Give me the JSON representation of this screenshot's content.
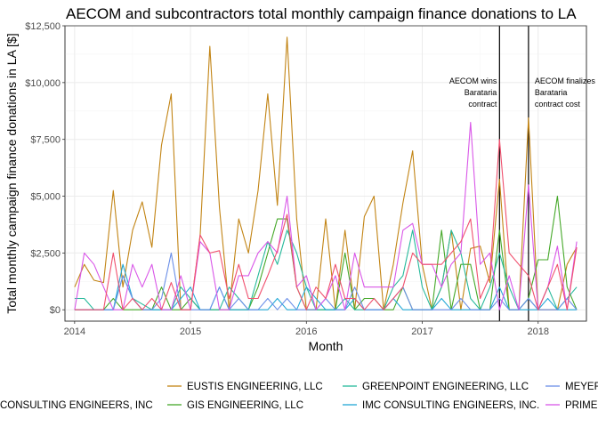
{
  "chart_data": {
    "type": "line",
    "title": "AECOM and subcontractors total monthly campaign finance donations to LA",
    "xlabel": "Month",
    "ylabel": "Total monthly campaign finance donations in LA [$]",
    "x_start": "2013-12",
    "x_end": "2018-06",
    "ylim": [
      -500,
      12500
    ],
    "x_ticks": [
      {
        "date": "2014-01",
        "label": "2014"
      },
      {
        "date": "2015-01",
        "label": "2015"
      },
      {
        "date": "2016-01",
        "label": "2016"
      },
      {
        "date": "2017-01",
        "label": "2017"
      },
      {
        "date": "2018-01",
        "label": "2018"
      }
    ],
    "y_ticks": [
      {
        "value": 0,
        "label": "$0"
      },
      {
        "value": 2500,
        "label": "$2,500"
      },
      {
        "value": 5000,
        "label": "$5,000"
      },
      {
        "value": 7500,
        "label": "$7,500"
      },
      {
        "value": 10000,
        "label": "$10,000"
      },
      {
        "value": 12500,
        "label": "$12,500"
      }
    ],
    "grid": true,
    "legend_position": "bottom",
    "annotations": [
      {
        "date": "2017-09",
        "lines": [
          "AECOM wins",
          "Barataria",
          "contract"
        ],
        "align": "left-of-line"
      },
      {
        "date": "2017-12",
        "lines": [
          "AECOM finalizes",
          "Barataria",
          "contract cost"
        ],
        "align": "right-of-line"
      }
    ],
    "series": [
      {
        "name": "EUSTIS ENGINEERING, LLC",
        "color": "#c28414",
        "x": [
          "2014-01",
          "2014-02",
          "2014-03",
          "2014-04",
          "2014-05",
          "2014-06",
          "2014-07",
          "2014-08",
          "2014-09",
          "2014-10",
          "2014-11",
          "2014-12",
          "2015-01",
          "2015-02",
          "2015-03",
          "2015-04",
          "2015-05",
          "2015-06",
          "2015-07",
          "2015-08",
          "2015-09",
          "2015-10",
          "2015-11",
          "2015-12",
          "2016-01",
          "2016-02",
          "2016-03",
          "2016-04",
          "2016-05",
          "2016-06",
          "2016-07",
          "2016-08",
          "2016-09",
          "2016-10",
          "2016-11",
          "2016-12",
          "2017-01",
          "2017-02",
          "2017-03",
          "2017-04",
          "2017-05",
          "2017-06",
          "2017-07",
          "2017-08",
          "2017-09",
          "2017-10",
          "2017-11",
          "2017-12",
          "2018-01",
          "2018-02",
          "2018-03",
          "2018-04",
          "2018-05"
        ],
        "y": [
          1000,
          2000,
          1300,
          1200,
          5250,
          1000,
          3500,
          4750,
          2750,
          7250,
          9500,
          0,
          0,
          3250,
          11600,
          4500,
          0,
          4000,
          2500,
          5250,
          9500,
          4600,
          12000,
          4000,
          0,
          0,
          4000,
          0,
          3500,
          0,
          4100,
          5000,
          0,
          2000,
          4700,
          7000,
          2000,
          0,
          1000,
          3500,
          0,
          2700,
          2800,
          1200,
          5750,
          0,
          0,
          8450,
          0,
          0,
          0,
          2000,
          2750
        ]
      },
      {
        "name": "GIS ENGINEERING, LLC",
        "color": "#45a829",
        "x": [
          "2014-01",
          "2014-02",
          "2014-03",
          "2014-04",
          "2014-05",
          "2014-06",
          "2014-07",
          "2014-08",
          "2014-09",
          "2014-10",
          "2014-11",
          "2014-12",
          "2015-01",
          "2015-02",
          "2015-03",
          "2015-04",
          "2015-05",
          "2015-06",
          "2015-07",
          "2015-08",
          "2015-09",
          "2015-10",
          "2015-11",
          "2015-12",
          "2016-01",
          "2016-02",
          "2016-03",
          "2016-04",
          "2016-05",
          "2016-06",
          "2016-07",
          "2016-08",
          "2016-09",
          "2016-10",
          "2016-11",
          "2016-12",
          "2017-01",
          "2017-02",
          "2017-03",
          "2017-04",
          "2017-05",
          "2017-06",
          "2017-07",
          "2017-08",
          "2017-09",
          "2017-10",
          "2017-11",
          "2017-12",
          "2018-01",
          "2018-02",
          "2018-03",
          "2018-04",
          "2018-05"
        ],
        "y": [
          0,
          0,
          0,
          0,
          500,
          0,
          0,
          0,
          0,
          1000,
          0,
          0,
          500,
          0,
          0,
          0,
          0,
          0,
          0,
          1000,
          2500,
          4000,
          4000,
          1000,
          0,
          0,
          0,
          0,
          2500,
          0,
          500,
          500,
          0,
          0,
          1000,
          0,
          0,
          0,
          3500,
          0,
          2000,
          2000,
          0,
          0,
          3500,
          0,
          0,
          500,
          2200,
          2200,
          5000,
          1000,
          0
        ]
      },
      {
        "name": "GREENPOINT ENGINEERING, LLC",
        "color": "#26b99b",
        "x": [
          "2014-01",
          "2014-02",
          "2014-03",
          "2014-04",
          "2014-05",
          "2014-06",
          "2014-07",
          "2014-08",
          "2014-09",
          "2014-10",
          "2014-11",
          "2014-12",
          "2015-01",
          "2015-02",
          "2015-03",
          "2015-04",
          "2015-05",
          "2015-06",
          "2015-07",
          "2015-08",
          "2015-09",
          "2015-10",
          "2015-11",
          "2015-12",
          "2016-01",
          "2016-02",
          "2016-03",
          "2016-04",
          "2016-05",
          "2016-06",
          "2016-07",
          "2016-08",
          "2016-09",
          "2016-10",
          "2016-11",
          "2016-12",
          "2017-01",
          "2017-02",
          "2017-03",
          "2017-04",
          "2017-05",
          "2017-06",
          "2017-07",
          "2017-08",
          "2017-09",
          "2017-10",
          "2017-11",
          "2017-12",
          "2018-01",
          "2018-02",
          "2018-03",
          "2018-04",
          "2018-05"
        ],
        "y": [
          500,
          500,
          0,
          0,
          0,
          1500,
          500,
          250,
          0,
          0,
          0,
          1000,
          500,
          0,
          0,
          0,
          1000,
          500,
          0,
          1500,
          3000,
          2000,
          3500,
          2500,
          1000,
          0,
          0,
          0,
          500,
          0,
          0,
          0,
          0,
          1000,
          1500,
          3500,
          1000,
          0,
          1000,
          3500,
          2500,
          500,
          0,
          1000,
          2500,
          1000,
          0,
          500,
          0,
          1000,
          0,
          500,
          1000
        ]
      },
      {
        "name": "IMC CONSULTING ENGINEERS, INC.",
        "color": "#23a8d6",
        "x": [
          "2014-01",
          "2014-02",
          "2014-03",
          "2014-04",
          "2014-05",
          "2014-06",
          "2014-07",
          "2014-08",
          "2014-09",
          "2014-10",
          "2014-11",
          "2014-12",
          "2015-01",
          "2015-02",
          "2015-03",
          "2015-04",
          "2015-05",
          "2015-06",
          "2015-07",
          "2015-08",
          "2015-09",
          "2015-10",
          "2015-11",
          "2015-12",
          "2016-01",
          "2016-02",
          "2016-03",
          "2016-04",
          "2016-05",
          "2016-06",
          "2016-07",
          "2016-08",
          "2016-09",
          "2016-10",
          "2016-11",
          "2016-12",
          "2017-01",
          "2017-02",
          "2017-03",
          "2017-04",
          "2017-05",
          "2017-06",
          "2017-07",
          "2017-08",
          "2017-09",
          "2017-10",
          "2017-11",
          "2017-12",
          "2018-01",
          "2018-02",
          "2018-03",
          "2018-04",
          "2018-05"
        ],
        "y": [
          0,
          0,
          0,
          0,
          0,
          2000,
          500,
          0,
          0,
          0,
          0,
          500,
          1000,
          0,
          0,
          1000,
          0,
          0,
          0,
          0,
          0,
          500,
          0,
          0,
          1000,
          500,
          0,
          0,
          0,
          500,
          0,
          0,
          0,
          500,
          0,
          0,
          0,
          0,
          500,
          0,
          0,
          0,
          0,
          0,
          1000,
          0,
          0,
          0,
          0,
          500,
          0,
          0,
          0
        ]
      },
      {
        "name": "MEYER ENGINEERS, LTD.",
        "color": "#6b8fe8",
        "x": [
          "2014-01",
          "2014-02",
          "2014-03",
          "2014-04",
          "2014-05",
          "2014-06",
          "2014-07",
          "2014-08",
          "2014-09",
          "2014-10",
          "2014-11",
          "2014-12",
          "2015-01",
          "2015-02",
          "2015-03",
          "2015-04",
          "2015-05",
          "2015-06",
          "2015-07",
          "2015-08",
          "2015-09",
          "2015-10",
          "2015-11",
          "2015-12",
          "2016-01",
          "2016-02",
          "2016-03",
          "2016-04",
          "2016-05",
          "2016-06",
          "2016-07",
          "2016-08",
          "2016-09",
          "2016-10",
          "2016-11",
          "2016-12",
          "2017-01",
          "2017-02",
          "2017-03",
          "2017-04",
          "2017-05",
          "2017-06",
          "2017-07",
          "2017-08",
          "2017-09",
          "2017-10",
          "2017-11",
          "2017-12",
          "2018-01",
          "2018-02",
          "2018-03",
          "2018-04",
          "2018-05"
        ],
        "y": [
          0,
          0,
          0,
          0,
          0,
          1500,
          500,
          0,
          0,
          500,
          2500,
          0,
          0,
          0,
          0,
          1000,
          0,
          500,
          0,
          0,
          500,
          0,
          500,
          0,
          0,
          0,
          500,
          0,
          0,
          1000,
          0,
          0,
          0,
          500,
          1000,
          0,
          0,
          0,
          0,
          0,
          500,
          0,
          0,
          0,
          500,
          0,
          0,
          500,
          0,
          0,
          0,
          500,
          0
        ]
      },
      {
        "name": "PRIME ENGINEERING, INC.",
        "color": "#d957e8",
        "x": [
          "2014-01",
          "2014-02",
          "2014-03",
          "2014-04",
          "2014-05",
          "2014-06",
          "2014-07",
          "2014-08",
          "2014-09",
          "2014-10",
          "2014-11",
          "2014-12",
          "2015-01",
          "2015-02",
          "2015-03",
          "2015-04",
          "2015-05",
          "2015-06",
          "2015-07",
          "2015-08",
          "2015-09",
          "2015-10",
          "2015-11",
          "2015-12",
          "2016-01",
          "2016-02",
          "2016-03",
          "2016-04",
          "2016-05",
          "2016-06",
          "2016-07",
          "2016-08",
          "2016-09",
          "2016-10",
          "2016-11",
          "2016-12",
          "2017-01",
          "2017-02",
          "2017-03",
          "2017-04",
          "2017-05",
          "2017-06",
          "2017-07",
          "2017-08",
          "2017-09",
          "2017-10",
          "2017-11",
          "2017-12",
          "2018-01",
          "2018-02",
          "2018-03",
          "2018-04",
          "2018-05"
        ],
        "y": [
          0,
          2500,
          2000,
          1000,
          0,
          0,
          2000,
          1000,
          2000,
          0,
          0,
          1500,
          0,
          3000,
          2500,
          0,
          0,
          1500,
          1500,
          2500,
          3000,
          2500,
          5000,
          1000,
          1500,
          0,
          500,
          1500,
          0,
          2500,
          1000,
          1000,
          1000,
          1000,
          3500,
          3800,
          2000,
          2000,
          1000,
          2000,
          2500,
          8250,
          2000,
          2500,
          0,
          1500,
          0,
          5500,
          0,
          1000,
          2800,
          0,
          3000
        ]
      },
      {
        "name": "",
        "color": "#f0506e",
        "x": [
          "2014-01",
          "2014-02",
          "2014-03",
          "2014-04",
          "2014-05",
          "2014-06",
          "2014-07",
          "2014-08",
          "2014-09",
          "2014-10",
          "2014-11",
          "2014-12",
          "2015-01",
          "2015-02",
          "2015-03",
          "2015-04",
          "2015-05",
          "2015-06",
          "2015-07",
          "2015-08",
          "2015-09",
          "2015-10",
          "2015-11",
          "2015-12",
          "2016-01",
          "2016-02",
          "2016-03",
          "2016-04",
          "2016-05",
          "2016-06",
          "2016-07",
          "2016-08",
          "2016-09",
          "2016-10",
          "2016-11",
          "2016-12",
          "2017-01",
          "2017-02",
          "2017-03",
          "2017-04",
          "2017-05",
          "2017-06",
          "2017-07",
          "2017-08",
          "2017-09",
          "2017-10",
          "2017-11",
          "2017-12",
          "2018-01",
          "2018-02",
          "2018-03",
          "2018-04",
          "2018-05"
        ],
        "y": [
          0,
          0,
          0,
          0,
          2500,
          0,
          500,
          0,
          500,
          0,
          1200,
          0,
          0,
          3300,
          2500,
          2600,
          500,
          2000,
          500,
          500,
          1500,
          2600,
          4200,
          1000,
          0,
          1000,
          500,
          2000,
          500,
          500,
          0,
          500,
          0,
          500,
          1000,
          2500,
          2000,
          2000,
          2000,
          2500,
          3000,
          4000,
          500,
          1500,
          7500,
          2500,
          2000,
          1500,
          0,
          1000,
          2000,
          0,
          2750
        ]
      }
    ]
  },
  "legend": {
    "row1": [
      {
        "label": "EUSTIS ENGINEERING, LLC",
        "color": "#c28414"
      },
      {
        "label": "GREENPOINT ENGINEERING, LLC",
        "color": "#26b99b"
      },
      {
        "label": "MEYER ENGINEERS, LTD.",
        "color": "#6b8fe8"
      }
    ],
    "row2": [
      {
        "label": "CONSULTING ENGINEERS, INC",
        "color": ""
      },
      {
        "label": "GIS ENGINEERING, LLC",
        "color": "#45a829"
      },
      {
        "label": "IMC CONSULTING ENGINEERS, INC.",
        "color": "#23a8d6"
      },
      {
        "label": "PRIME ENGINEERING, INC.",
        "color": "#d957e8"
      }
    ]
  }
}
